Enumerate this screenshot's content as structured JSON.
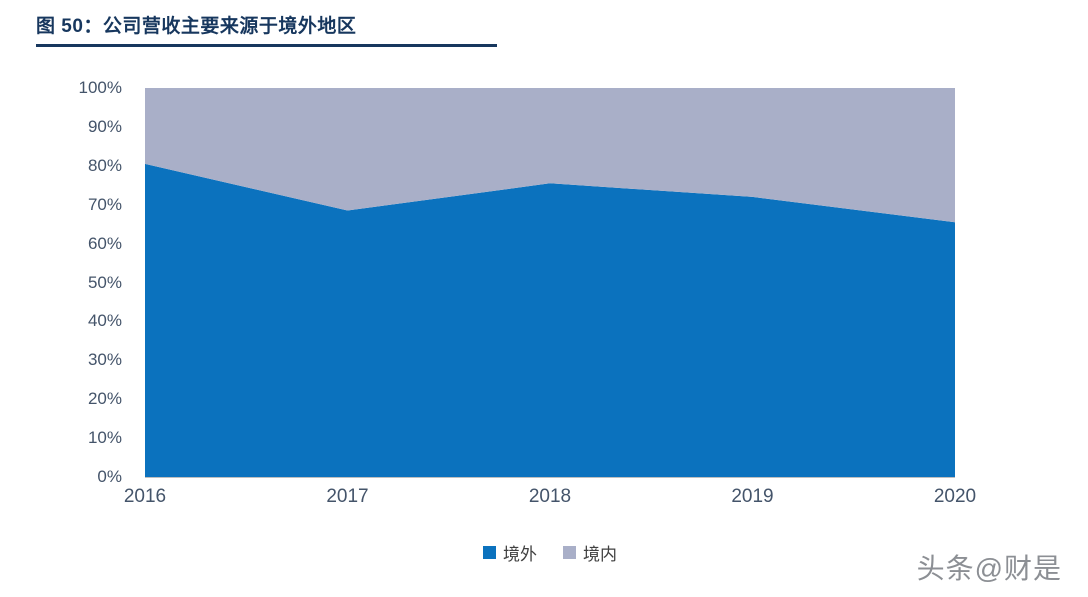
{
  "header": {
    "title": "图 50：公司营收主要来源于境外地区",
    "underline_color": "#17375E"
  },
  "watermark": {
    "text": "头条@财是"
  },
  "colors": {
    "overseas_blue": "#0B72BE",
    "domestic_gray": "#A9AFC8",
    "title_navy": "#17375E",
    "axis_text": "#44546A"
  },
  "chart_data": {
    "type": "area",
    "stacked": true,
    "percent": true,
    "title": "公司营收主要来源于境外地区",
    "categories": [
      "2016",
      "2017",
      "2018",
      "2019",
      "2020"
    ],
    "series": [
      {
        "name": "境外",
        "color": "#0B72BE",
        "values": [
          80.5,
          68.5,
          75.5,
          72,
          65.5
        ]
      },
      {
        "name": "境内",
        "color": "#A9AFC8",
        "values": [
          19.5,
          31.5,
          24.5,
          28,
          34.5
        ]
      }
    ],
    "ylim": [
      0,
      100
    ],
    "y_ticks": [
      "0%",
      "10%",
      "20%",
      "30%",
      "40%",
      "50%",
      "60%",
      "70%",
      "80%",
      "90%",
      "100%"
    ],
    "xlabel": "",
    "ylabel": "",
    "grid": false,
    "legend_position": "bottom"
  }
}
